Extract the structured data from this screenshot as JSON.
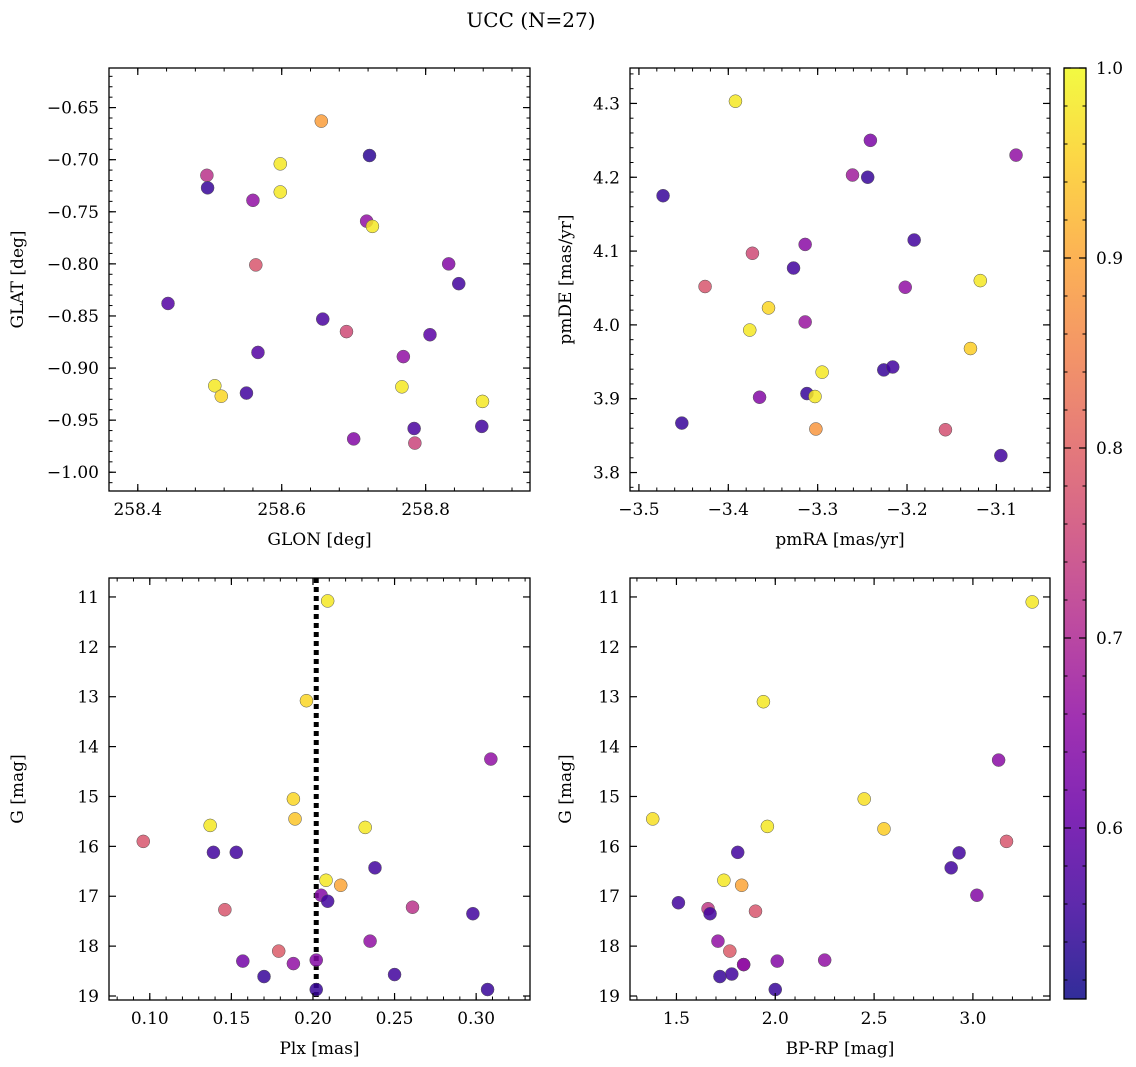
{
  "title": "UCC (N=27)",
  "colorbar": {
    "colormap": "plasma",
    "range": [
      0.51,
      1.0
    ],
    "ticks": [
      "0.6",
      "0.7",
      "0.8",
      "0.9",
      "1.0"
    ]
  },
  "chart_data": [
    {
      "type": "scatter",
      "xlabel": "GLON [deg]",
      "ylabel": "GLAT [deg]",
      "xlim": [
        258.36,
        258.945
      ],
      "ylim": [
        -1.018,
        -0.612
      ],
      "xticks": [
        "258.4",
        "258.6",
        "258.8"
      ],
      "yticks": [
        "-0.65",
        "-0.70",
        "-0.75",
        "-0.80",
        "-0.85",
        "-0.90",
        "-0.95",
        "-1.00"
      ],
      "x": [
        258.655,
        258.598,
        258.496,
        258.722,
        258.598,
        258.497,
        258.56,
        258.718,
        258.726,
        258.564,
        258.832,
        258.846,
        258.442,
        258.657,
        258.69,
        258.806,
        258.567,
        258.769,
        258.507,
        258.767,
        258.516,
        258.551,
        258.879,
        258.784,
        258.878,
        258.7,
        258.785
      ],
      "y": [
        -0.663,
        -0.704,
        -0.715,
        -0.696,
        -0.731,
        -0.727,
        -0.739,
        -0.759,
        -0.764,
        -0.801,
        -0.8,
        -0.819,
        -0.838,
        -0.853,
        -0.865,
        -0.868,
        -0.885,
        -0.889,
        -0.917,
        -0.918,
        -0.927,
        -0.924,
        -0.932,
        -0.958,
        -0.956,
        -0.968,
        -0.972
      ],
      "c": [
        0.89,
        0.98,
        0.72,
        0.54,
        0.98,
        0.55,
        0.66,
        0.66,
        0.98,
        0.78,
        0.64,
        0.56,
        0.58,
        0.57,
        0.76,
        0.59,
        0.58,
        0.66,
        0.98,
        0.98,
        0.96,
        0.56,
        0.98,
        0.57,
        0.56,
        0.64,
        0.75
      ]
    },
    {
      "type": "scatter",
      "xlabel": "pmRA [mas/yr]",
      "ylabel": "pmDE [mas/yr]",
      "xlim": [
        -3.51,
        -3.04
      ],
      "ylim": [
        3.775,
        4.348
      ],
      "xticks": [
        "-3.5",
        "-3.4",
        "-3.3",
        "-3.2",
        "-3.1"
      ],
      "yticks": [
        "3.8",
        "3.9",
        "4.0",
        "4.1",
        "4.2",
        "4.3"
      ],
      "x": [
        -3.392,
        -3.241,
        -3.078,
        -3.261,
        -3.244,
        -3.473,
        -3.192,
        -3.314,
        -3.373,
        -3.327,
        -3.118,
        -3.426,
        -3.202,
        -3.355,
        -3.314,
        -3.376,
        -3.129,
        -3.295,
        -3.226,
        -3.216,
        -3.312,
        -3.365,
        -3.303,
        -3.452,
        -3.302,
        -3.157,
        -3.095
      ],
      "y": [
        4.303,
        4.25,
        4.23,
        4.203,
        4.2,
        4.175,
        4.115,
        4.109,
        4.097,
        4.077,
        4.06,
        4.052,
        4.051,
        4.023,
        4.004,
        3.993,
        3.968,
        3.936,
        3.939,
        3.943,
        3.907,
        3.902,
        3.903,
        3.867,
        3.859,
        3.858,
        3.823
      ],
      "c": [
        0.98,
        0.63,
        0.66,
        0.68,
        0.55,
        0.55,
        0.56,
        0.65,
        0.76,
        0.56,
        0.98,
        0.78,
        0.66,
        0.96,
        0.67,
        0.98,
        0.95,
        0.98,
        0.55,
        0.56,
        0.55,
        0.64,
        0.98,
        0.55,
        0.88,
        0.77,
        0.56
      ]
    },
    {
      "type": "scatter",
      "xlabel": "Plx [mas]",
      "ylabel": "G [mag]",
      "xlim": [
        0.075,
        0.333
      ],
      "ylim": [
        19.08,
        10.62
      ],
      "y_inverted": true,
      "vline": {
        "x": 0.202,
        "style": "dotted"
      },
      "xticks": [
        "0.10",
        "0.15",
        "0.20",
        "0.25",
        "0.30"
      ],
      "yticks": [
        "11",
        "12",
        "13",
        "14",
        "15",
        "16",
        "17",
        "18",
        "19"
      ],
      "x": [
        0.209,
        0.196,
        0.309,
        0.188,
        0.189,
        0.137,
        0.232,
        0.096,
        0.139,
        0.153,
        0.238,
        0.208,
        0.217,
        0.205,
        0.209,
        0.146,
        0.261,
        0.298,
        0.235,
        0.179,
        0.157,
        0.188,
        0.202,
        0.17,
        0.25,
        0.202,
        0.307
      ],
      "y": [
        11.08,
        13.08,
        14.25,
        15.05,
        15.45,
        15.58,
        15.62,
        15.9,
        16.12,
        16.12,
        16.43,
        16.68,
        16.78,
        16.98,
        17.1,
        17.27,
        17.22,
        17.35,
        17.9,
        18.1,
        18.3,
        18.35,
        18.28,
        18.61,
        18.57,
        18.87,
        18.87
      ],
      "c": [
        0.98,
        0.96,
        0.66,
        0.96,
        0.94,
        0.98,
        0.98,
        0.78,
        0.56,
        0.56,
        0.56,
        0.98,
        0.9,
        0.64,
        0.56,
        0.78,
        0.72,
        0.56,
        0.66,
        0.79,
        0.62,
        0.66,
        0.64,
        0.55,
        0.56,
        0.55,
        0.55
      ]
    },
    {
      "type": "scatter",
      "xlabel": "BP-RP [mag]",
      "ylabel": "G [mag]",
      "xlim": [
        1.265,
        3.39
      ],
      "ylim": [
        19.08,
        10.62
      ],
      "y_inverted": true,
      "xticks": [
        "1.5",
        "2.0",
        "2.5",
        "3.0"
      ],
      "yticks": [
        "11",
        "12",
        "13",
        "14",
        "15",
        "16",
        "17",
        "18",
        "19"
      ],
      "x": [
        3.3,
        1.94,
        3.13,
        2.45,
        1.38,
        1.96,
        2.55,
        3.17,
        1.81,
        2.93,
        2.89,
        1.74,
        1.83,
        3.02,
        1.51,
        1.66,
        1.9,
        1.67,
        1.71,
        1.77,
        2.01,
        1.84,
        2.25,
        1.72,
        1.78,
        2.0,
        1.84
      ],
      "y": [
        11.1,
        13.1,
        14.27,
        15.05,
        15.45,
        15.6,
        15.65,
        15.9,
        16.12,
        16.13,
        16.43,
        16.68,
        16.78,
        16.98,
        17.13,
        17.25,
        17.3,
        17.35,
        17.9,
        18.1,
        18.3,
        18.37,
        18.28,
        18.61,
        18.56,
        18.87,
        18.37
      ],
      "c": [
        0.98,
        0.98,
        0.65,
        0.97,
        0.97,
        0.98,
        0.95,
        0.78,
        0.56,
        0.56,
        0.56,
        0.98,
        0.9,
        0.64,
        0.56,
        0.73,
        0.78,
        0.56,
        0.66,
        0.79,
        0.64,
        0.66,
        0.66,
        0.55,
        0.56,
        0.55,
        0.66
      ]
    }
  ]
}
